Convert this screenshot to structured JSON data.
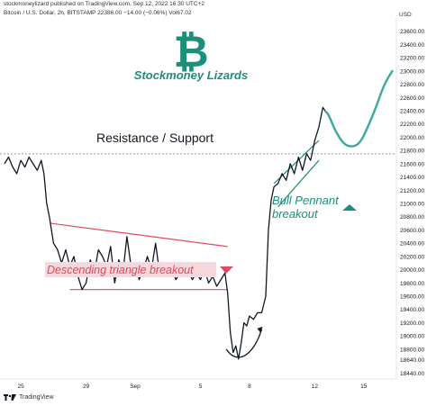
{
  "header": {
    "publisher_line": "stockmoneylizard published on TradingView.com, Sep 12, 2022 16:30 UTC+2",
    "symbol_line": "Bitcoin / U.S. Dollar, 2h, BITSTAMP  22386.00  −14.00  (−0.06%)  Vol67.02",
    "currency": "USD"
  },
  "footer": {
    "brand": "TradingView"
  },
  "annotations": {
    "brand_name": "Stockmoney Lizards",
    "resistance": "Resistance / Support",
    "bull_pennant_line1": "Bull Pennant",
    "bull_pennant_line2": "breakout",
    "descending_triangle": "Descending triangle breakout"
  },
  "colors": {
    "price": "#131722",
    "green": "#1a8f7a",
    "red": "#e04a5f",
    "pink": "#f7d7dc",
    "dotted": "#999999",
    "projection": "#3aa89a"
  },
  "chart_data": {
    "type": "line",
    "title": "",
    "xlabel": "",
    "ylabel": "USD",
    "x_ticks": [
      "25",
      "29",
      "Sep",
      "5",
      "8",
      "12",
      "15"
    ],
    "y_ticks": [
      18440,
      18640,
      18800,
      19000,
      19200,
      19400,
      19600,
      19800,
      20000,
      20200,
      20400,
      20600,
      20800,
      21000,
      21200,
      21400,
      21600,
      21800,
      22000,
      22200,
      22400,
      22600,
      22800,
      23000,
      23200,
      23400,
      23600
    ],
    "y_tick_labels": [
      "18440.00",
      "18640.00",
      "18800.00",
      "19000.00",
      "19200.00",
      "19400.00",
      "19600.00",
      "19800.00",
      "20000.00",
      "20200.00",
      "20400.00",
      "20600.00",
      "20800.00",
      "21000.00",
      "21200.00",
      "21400.00",
      "21600.00",
      "21800.00",
      "22000.00",
      "22200.00",
      "22400.00",
      "22600.00",
      "22800.00",
      "23000.00",
      "23200.00",
      "23400.00",
      "23600.00"
    ],
    "x_range": [
      "Aug 24",
      "Sep 17"
    ],
    "y_range": [
      18350,
      23800
    ],
    "resistance_support_level": 21750,
    "series": [
      {
        "values": [
          [
            "Aug 24 00:00",
            21600
          ],
          [
            "Aug 24 06:00",
            21700
          ],
          [
            "Aug 24 12:00",
            21550
          ],
          [
            "Aug 24 18:00",
            21450
          ],
          [
            "Aug 25 00:00",
            21650
          ],
          [
            "Aug 25 06:00",
            21550
          ],
          [
            "Aug 25 12:00",
            21700
          ],
          [
            "Aug 25 18:00",
            21600
          ],
          [
            "Aug 26 00:00",
            21500
          ],
          [
            "Aug 26 06:00",
            21650
          ],
          [
            "Aug 26 10:00",
            21450
          ],
          [
            "Aug 26 14:00",
            21000
          ],
          [
            "Aug 26 18:00",
            20800
          ],
          [
            "Aug 27 00:00",
            20400
          ],
          [
            "Aug 27 06:00",
            20300
          ],
          [
            "Aug 27 12:00",
            20100
          ],
          [
            "Aug 27 18:00",
            20300
          ],
          [
            "Aug 28 00:00",
            20050
          ],
          [
            "Aug 28 06:00",
            20200
          ],
          [
            "Aug 28 12:00",
            19900
          ],
          [
            "Aug 28 18:00",
            19700
          ],
          [
            "Aug 29 00:00",
            19800
          ],
          [
            "Aug 29 06:00",
            20150
          ],
          [
            "Aug 29 12:00",
            19950
          ],
          [
            "Aug 29 18:00",
            20300
          ],
          [
            "Aug 30 00:00",
            20200
          ],
          [
            "Aug 30 06:00",
            20050
          ],
          [
            "Aug 30 12:00",
            20350
          ],
          [
            "Aug 30 18:00",
            19800
          ],
          [
            "Aug 31 00:00",
            20150
          ],
          [
            "Aug 31 06:00",
            19950
          ],
          [
            "Aug 31 12:00",
            20500
          ],
          [
            "Aug 31 18:00",
            20050
          ],
          [
            "Sep 01 00:00",
            20100
          ],
          [
            "Sep 01 06:00",
            19850
          ],
          [
            "Sep 01 12:00",
            20000
          ],
          [
            "Sep 01 18:00",
            20200
          ],
          [
            "Sep 02 00:00",
            20000
          ],
          [
            "Sep 02 06:00",
            20400
          ],
          [
            "Sep 02 12:00",
            19950
          ],
          [
            "Sep 02 18:00",
            20100
          ],
          [
            "Sep 03 00:00",
            19900
          ],
          [
            "Sep 03 06:00",
            20000
          ],
          [
            "Sep 03 12:00",
            19850
          ],
          [
            "Sep 03 18:00",
            19950
          ],
          [
            "Sep 04 00:00",
            19900
          ],
          [
            "Sep 04 06:00",
            20000
          ],
          [
            "Sep 04 12:00",
            19850
          ],
          [
            "Sep 04 18:00",
            19950
          ],
          [
            "Sep 05 00:00",
            19850
          ],
          [
            "Sep 05 06:00",
            20000
          ],
          [
            "Sep 05 12:00",
            19800
          ],
          [
            "Sep 05 18:00",
            19900
          ],
          [
            "Sep 06 00:00",
            19750
          ],
          [
            "Sep 06 06:00",
            19850
          ],
          [
            "Sep 06 12:00",
            19950
          ],
          [
            "Sep 06 16:00",
            19650
          ],
          [
            "Sep 06 20:00",
            19050
          ],
          [
            "Sep 07 00:00",
            18750
          ],
          [
            "Sep 07 04:00",
            18850
          ],
          [
            "Sep 07 08:00",
            18650
          ],
          [
            "Sep 07 12:00",
            18900
          ],
          [
            "Sep 07 16:00",
            19200
          ],
          [
            "Sep 07 20:00",
            19150
          ],
          [
            "Sep 08 00:00",
            19300
          ],
          [
            "Sep 08 06:00",
            19250
          ],
          [
            "Sep 08 12:00",
            19350
          ],
          [
            "Sep 08 18:00",
            19350
          ],
          [
            "Sep 09 00:00",
            19600
          ],
          [
            "Sep 09 04:00",
            20600
          ],
          [
            "Sep 09 08:00",
            21050
          ],
          [
            "Sep 09 12:00",
            21250
          ],
          [
            "Sep 09 18:00",
            21300
          ],
          [
            "Sep 10 00:00",
            21450
          ],
          [
            "Sep 10 06:00",
            21350
          ],
          [
            "Sep 10 12:00",
            21600
          ],
          [
            "Sep 10 18:00",
            21450
          ],
          [
            "Sep 11 00:00",
            21700
          ],
          [
            "Sep 11 06:00",
            21500
          ],
          [
            "Sep 11 12:00",
            21750
          ],
          [
            "Sep 11 18:00",
            21650
          ],
          [
            "Sep 12 00:00",
            21950
          ],
          [
            "Sep 12 06:00",
            22150
          ],
          [
            "Sep 12 12:00",
            22450
          ],
          [
            "Sep 12 16:00",
            22386
          ]
        ]
      }
    ],
    "projection": [
      [
        "Sep 12 20:00",
        22350
      ],
      [
        "Sep 13 06:00",
        22100
      ],
      [
        "Sep 13 18:00",
        21900
      ],
      [
        "Sep 14 06:00",
        21850
      ],
      [
        "Sep 14 18:00",
        21900
      ],
      [
        "Sep 15 06:00",
        22150
      ],
      [
        "Sep 15 18:00",
        22450
      ],
      [
        "Sep 16 06:00",
        22800
      ],
      [
        "Sep 16 18:00",
        23000
      ]
    ],
    "descending_triangle": {
      "upper": [
        [
          "Aug 26 20:00",
          20700
        ],
        [
          "Sep 06 16:00",
          20350
        ]
      ],
      "lower": [
        [
          "Aug 28 00:00",
          19700
        ],
        [
          "Sep 06 16:00",
          19700
        ]
      ]
    },
    "bull_pennant": {
      "upper": [
        [
          "Sep 09 12:00",
          21300
        ],
        [
          "Sep 12 06:00",
          21950
        ]
      ],
      "lower": [
        [
          "Sep 09 18:00",
          20950
        ],
        [
          "Sep 12 06:00",
          21650
        ]
      ]
    },
    "bounce_arc": [
      [
        "Sep 06 14:00",
        18800
      ],
      [
        "Sep 07 06:00",
        18550
      ],
      [
        "Sep 08 06:00",
        18700
      ],
      [
        "Sep 08 18:00",
        19100
      ]
    ]
  }
}
